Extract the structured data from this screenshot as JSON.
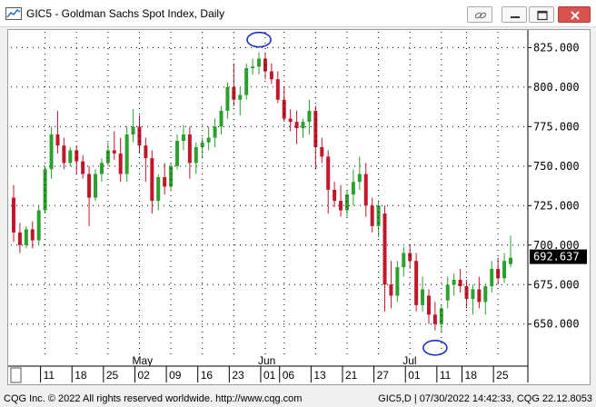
{
  "window": {
    "title": "GIC5 - Goldman Sachs Spot Index, Daily",
    "icons": {
      "app": "chart-app-icon",
      "link": "link-icon",
      "minimize": "minimize-icon",
      "maximize": "maximize-icon",
      "close": "close-icon"
    },
    "colors": {
      "close_button": "#d9534f",
      "up_candle": "#2ca02c",
      "down_candle": "#c0182a",
      "last_price_bg": "#000000",
      "highlight_ellipse": "#1f2fbf"
    }
  },
  "status": {
    "left": "CQG Inc. © 2022 All rights reserved worldwide. http://www.cqg.com",
    "right": "GIC5,D | 07/30/2022 14:42:33, CQG 22.12.8053"
  },
  "chart_data": {
    "type": "candlestick",
    "title": "",
    "symbol": "GIC5",
    "ylim": [
      628,
      835
    ],
    "yticks": [
      650.0,
      675.0,
      700.0,
      725.0,
      750.0,
      775.0,
      800.0,
      825.0
    ],
    "ytick_labels": [
      "650.000",
      "675.000",
      "700.000",
      "725.000",
      "750.000",
      "775.000",
      "800.000",
      "825.000"
    ],
    "last_price": "692.637",
    "month_labels": [
      "May",
      "Jun",
      "Jul"
    ],
    "day_labels": [
      "11",
      "18",
      "25",
      "02",
      "09",
      "16",
      "23",
      "01",
      "06",
      "13",
      "21",
      "27",
      "01",
      "11",
      "18",
      "25"
    ],
    "grid": true,
    "legend": "none",
    "candles": [
      [
        730,
        738,
        702,
        708
      ],
      [
        708,
        714,
        695,
        700
      ],
      [
        700,
        712,
        698,
        710
      ],
      [
        710,
        715,
        698,
        703
      ],
      [
        703,
        725,
        700,
        722
      ],
      [
        722,
        750,
        720,
        748
      ],
      [
        748,
        775,
        742,
        770
      ],
      [
        770,
        785,
        758,
        763
      ],
      [
        763,
        768,
        748,
        752
      ],
      [
        752,
        762,
        750,
        760
      ],
      [
        760,
        763,
        745,
        753
      ],
      [
        753,
        757,
        742,
        745
      ],
      [
        745,
        750,
        712,
        730
      ],
      [
        730,
        748,
        728,
        745
      ],
      [
        745,
        755,
        740,
        752
      ],
      [
        752,
        765,
        750,
        760
      ],
      [
        760,
        772,
        754,
        758
      ],
      [
        758,
        768,
        740,
        745
      ],
      [
        745,
        775,
        740,
        770
      ],
      [
        770,
        786,
        765,
        775
      ],
      [
        775,
        782,
        758,
        763
      ],
      [
        763,
        768,
        740,
        755
      ],
      [
        755,
        760,
        720,
        728
      ],
      [
        728,
        745,
        722,
        743
      ],
      [
        743,
        752,
        732,
        737
      ],
      [
        737,
        752,
        735,
        750
      ],
      [
        750,
        770,
        748,
        766
      ],
      [
        766,
        776,
        760,
        770
      ],
      [
        770,
        775,
        742,
        752
      ],
      [
        752,
        765,
        745,
        762
      ],
      [
        762,
        768,
        755,
        765
      ],
      [
        765,
        775,
        760,
        768
      ],
      [
        768,
        780,
        762,
        775
      ],
      [
        775,
        788,
        770,
        785
      ],
      [
        785,
        803,
        780,
        800
      ],
      [
        800,
        815,
        788,
        792
      ],
      [
        792,
        800,
        782,
        795
      ],
      [
        795,
        815,
        792,
        812
      ],
      [
        812,
        818,
        808,
        813
      ],
      [
        813,
        822,
        808,
        818
      ],
      [
        818,
        822,
        805,
        810
      ],
      [
        810,
        815,
        802,
        805
      ],
      [
        805,
        810,
        790,
        792
      ],
      [
        792,
        800,
        778,
        780
      ],
      [
        780,
        786,
        772,
        778
      ],
      [
        778,
        785,
        764,
        774
      ],
      [
        774,
        780,
        768,
        778
      ],
      [
        778,
        792,
        770,
        785
      ],
      [
        785,
        788,
        748,
        762
      ],
      [
        762,
        768,
        752,
        756
      ],
      [
        756,
        760,
        720,
        735
      ],
      [
        735,
        740,
        724,
        728
      ],
      [
        728,
        738,
        718,
        722
      ],
      [
        722,
        735,
        718,
        732
      ],
      [
        732,
        748,
        725,
        740
      ],
      [
        740,
        756,
        735,
        745
      ],
      [
        745,
        752,
        718,
        725
      ],
      [
        725,
        730,
        708,
        712
      ],
      [
        712,
        728,
        705,
        725
      ],
      [
        720,
        725,
        658,
        675
      ],
      [
        675,
        690,
        660,
        668
      ],
      [
        668,
        690,
        664,
        686
      ],
      [
        686,
        699,
        680,
        695
      ],
      [
        695,
        700,
        685,
        690
      ],
      [
        690,
        695,
        658,
        662
      ],
      [
        662,
        680,
        658,
        672
      ],
      [
        668,
        672,
        650,
        656
      ],
      [
        656,
        664,
        646,
        650
      ],
      [
        650,
        662,
        645,
        660
      ],
      [
        665,
        680,
        660,
        675
      ],
      [
        675,
        682,
        668,
        678
      ],
      [
        678,
        685,
        670,
        674
      ],
      [
        674,
        678,
        660,
        666
      ],
      [
        666,
        675,
        656,
        672
      ],
      [
        672,
        680,
        660,
        664
      ],
      [
        664,
        676,
        656,
        674
      ],
      [
        674,
        690,
        670,
        685
      ],
      [
        685,
        692,
        675,
        679
      ],
      [
        679,
        695,
        676,
        690
      ],
      [
        688,
        706,
        686,
        692
      ]
    ]
  }
}
